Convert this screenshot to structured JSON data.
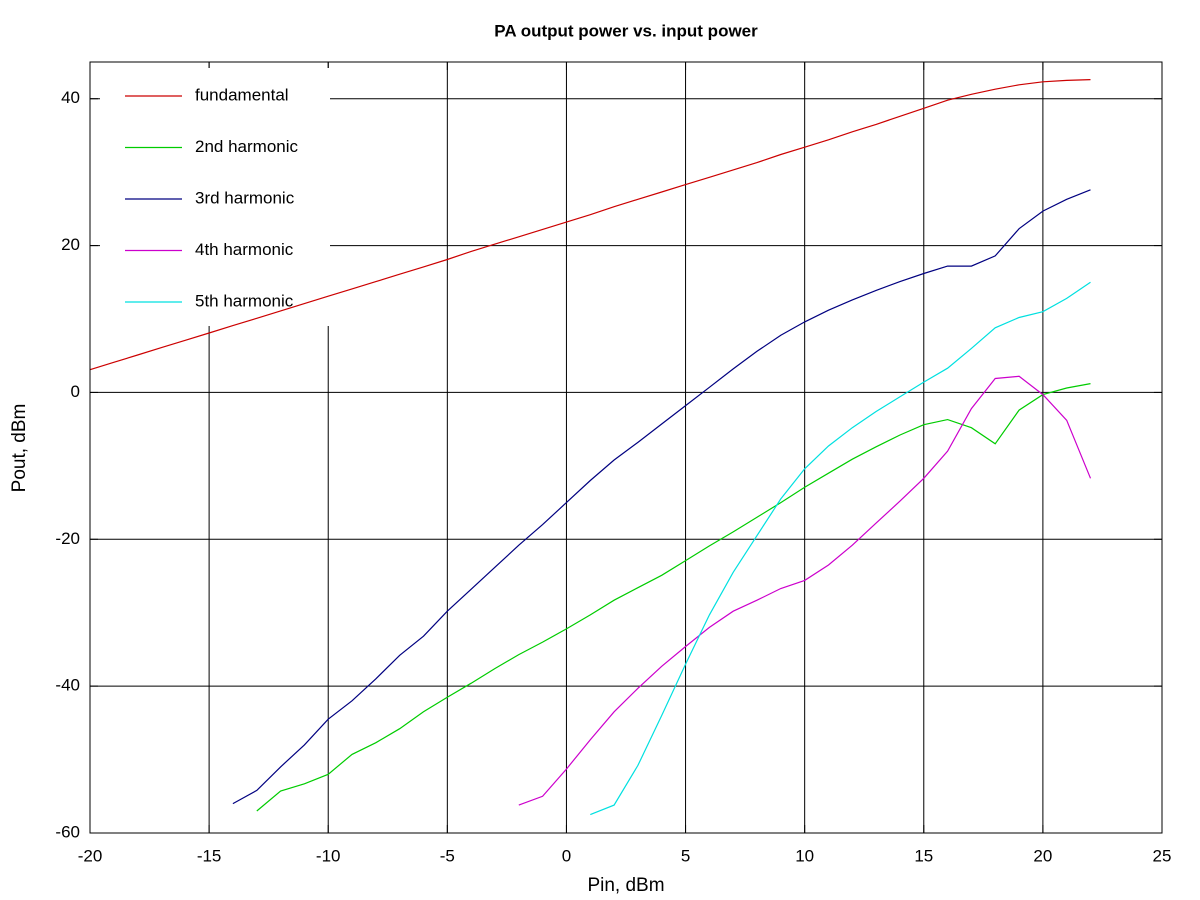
{
  "chart_data": {
    "type": "line",
    "title": "PA output power vs. input power",
    "xlabel": "Pin, dBm",
    "ylabel": "Pout, dBm",
    "x": [
      -20,
      -19,
      -18,
      -17,
      -16,
      -15,
      -14,
      -13,
      -12,
      -11,
      -10,
      -9,
      -8,
      -7,
      -6,
      -5,
      -4,
      -3,
      -2,
      -1,
      0,
      1,
      2,
      3,
      4,
      5,
      6,
      7,
      8,
      9,
      10,
      11,
      12,
      13,
      14,
      15,
      16,
      17,
      18,
      19,
      20,
      21,
      22
    ],
    "series": [
      {
        "name": "fundamental",
        "color": "#cc0000",
        "values": [
          3.1,
          4.1,
          5.1,
          6.1,
          7.1,
          8.1,
          9.1,
          10.1,
          11.1,
          12.1,
          13.1,
          14.1,
          15.1,
          16.1,
          17.1,
          18.1,
          19.2,
          20.2,
          21.2,
          22.2,
          23.2,
          24.2,
          25.3,
          26.3,
          27.3,
          28.3,
          29.3,
          30.3,
          31.3,
          32.4,
          33.4,
          34.4,
          35.5,
          36.5,
          37.6,
          38.7,
          39.8,
          40.6,
          41.3,
          41.9,
          42.3,
          42.5,
          42.6
        ]
      },
      {
        "name": "2nd harmonic",
        "color": "#00cc00",
        "values": [
          null,
          null,
          null,
          null,
          null,
          null,
          null,
          -57,
          -54.3,
          -53.3,
          -52,
          -49.3,
          -47.7,
          -45.8,
          -43.5,
          -41.5,
          -39.6,
          -37.6,
          -35.7,
          -34,
          -32.2,
          -30.3,
          -28.3,
          -26.6,
          -24.9,
          -22.9,
          -20.9,
          -19,
          -17,
          -15,
          -12.9,
          -11,
          -9.1,
          -7.4,
          -5.8,
          -4.4,
          -3.7,
          -4.8,
          -7,
          -2.4,
          -0.3,
          0.6,
          1.2
        ]
      },
      {
        "name": "3rd harmonic",
        "color": "#000080",
        "values": [
          null,
          null,
          null,
          null,
          null,
          null,
          -56,
          -54.2,
          -51,
          -48,
          -44.5,
          -42,
          -39,
          -35.8,
          -33.2,
          -29.8,
          -26.8,
          -23.8,
          -20.8,
          -18,
          -15,
          -12,
          -9.2,
          -6.8,
          -4.3,
          -1.8,
          0.7,
          3.2,
          5.6,
          7.8,
          9.6,
          11.2,
          12.6,
          13.9,
          15.1,
          16.2,
          17.2,
          17.2,
          18.6,
          22.3,
          24.7,
          26.3,
          27.6
        ]
      },
      {
        "name": "4th harmonic",
        "color": "#cc00cc",
        "values": [
          null,
          null,
          null,
          null,
          null,
          null,
          null,
          null,
          null,
          null,
          null,
          null,
          null,
          null,
          null,
          null,
          null,
          null,
          -56.2,
          -55,
          -51.3,
          -47.3,
          -43.5,
          -40.3,
          -37.3,
          -34.6,
          -32,
          -29.8,
          -28.3,
          -26.7,
          -25.6,
          -23.5,
          -20.8,
          -17.8,
          -14.8,
          -11.7,
          -8,
          -2.2,
          1.9,
          2.2,
          -0.3,
          -3.8,
          -11.7
        ]
      },
      {
        "name": "5th harmonic",
        "color": "#00e0e0",
        "values": [
          null,
          null,
          null,
          null,
          null,
          null,
          null,
          null,
          null,
          null,
          null,
          null,
          null,
          null,
          null,
          null,
          null,
          null,
          null,
          null,
          null,
          -57.5,
          -56.2,
          -50.8,
          -44,
          -37,
          -30.3,
          -24.5,
          -19.5,
          -14.5,
          -10.4,
          -7.3,
          -4.8,
          -2.6,
          -0.6,
          1.4,
          3.3,
          6,
          8.8,
          10.2,
          11,
          12.8,
          15
        ]
      }
    ],
    "xlim": [
      -20,
      25
    ],
    "xticks": [
      -20,
      -15,
      -10,
      -5,
      0,
      5,
      10,
      15,
      20,
      25
    ],
    "ylim": [
      -60,
      45
    ],
    "yticks": [
      -60,
      -40,
      -20,
      0,
      20,
      40
    ],
    "grid": true,
    "legend": "upper-left"
  }
}
